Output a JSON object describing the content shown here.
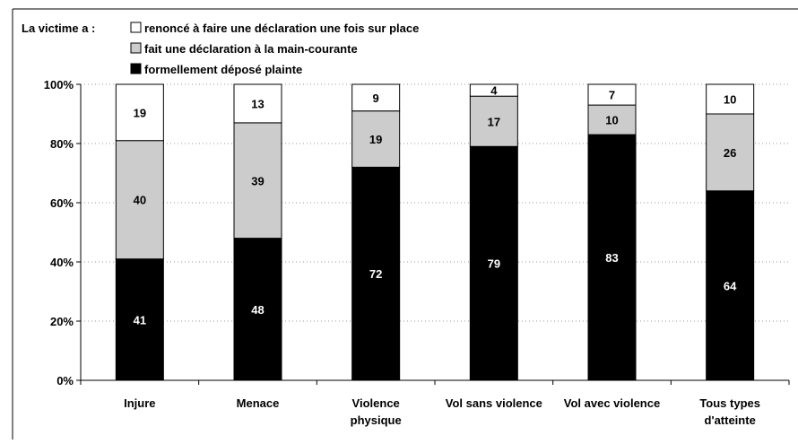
{
  "chart_data": {
    "type": "bar",
    "stacked": true,
    "title": "",
    "categories": [
      [
        "Injure"
      ],
      [
        "Menace"
      ],
      [
        "Violence",
        "physique"
      ],
      [
        "Vol sans violence"
      ],
      [
        "Vol avec violence"
      ],
      [
        "Tous types",
        "d'atteinte"
      ]
    ],
    "series": [
      {
        "name": "formellement déposé plainte",
        "values": [
          41,
          48,
          72,
          79,
          83,
          64
        ],
        "color": "#000000",
        "label_color": "#ffffff"
      },
      {
        "name": "fait une déclaration à la main-courante",
        "values": [
          40,
          39,
          19,
          17,
          10,
          26
        ],
        "color": "#cccccc",
        "label_color": "#000000"
      },
      {
        "name": "renoncé à faire une déclaration une fois sur place",
        "values": [
          19,
          13,
          9,
          4,
          7,
          10
        ],
        "color": "#ffffff",
        "label_color": "#000000"
      }
    ],
    "ylim": [
      0,
      100
    ],
    "yticks": [
      "0%",
      "20%",
      "40%",
      "60%",
      "80%",
      "100%"
    ],
    "grid": "dotted horizontal",
    "xlabel": "",
    "ylabel": "",
    "legend": {
      "title": "La victime a :",
      "position": "top-left",
      "order": [
        2,
        1,
        0
      ]
    }
  }
}
